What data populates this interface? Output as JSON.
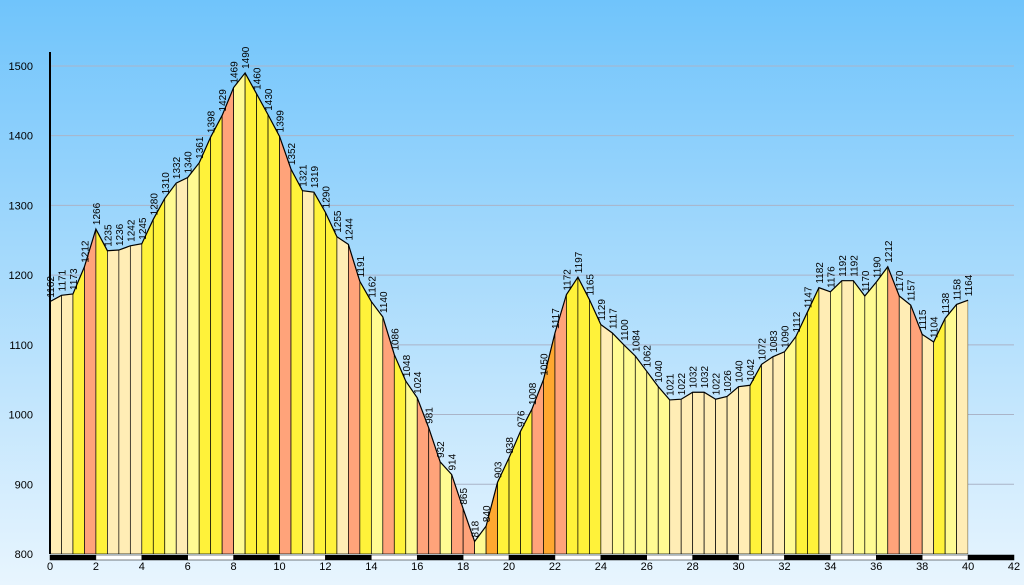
{
  "chart_data": {
    "type": "area",
    "title": "",
    "xlabel": "",
    "ylabel": "",
    "xlim": [
      0,
      42
    ],
    "ylim": [
      800,
      1520
    ],
    "grid": true,
    "x_ticks": [
      0,
      2,
      4,
      6,
      8,
      10,
      12,
      14,
      16,
      18,
      20,
      22,
      24,
      26,
      28,
      30,
      32,
      34,
      36,
      38,
      40,
      42
    ],
    "y_ticks": [
      800,
      900,
      1000,
      1100,
      1200,
      1300,
      1400,
      1500
    ],
    "points": [
      {
        "x": 0.0,
        "y": 1162
      },
      {
        "x": 0.5,
        "y": 1171
      },
      {
        "x": 1.0,
        "y": 1173
      },
      {
        "x": 1.5,
        "y": 1212
      },
      {
        "x": 2.0,
        "y": 1266
      },
      {
        "x": 2.5,
        "y": 1235
      },
      {
        "x": 3.0,
        "y": 1236
      },
      {
        "x": 3.5,
        "y": 1242
      },
      {
        "x": 4.0,
        "y": 1245
      },
      {
        "x": 4.5,
        "y": 1280
      },
      {
        "x": 5.0,
        "y": 1310
      },
      {
        "x": 5.5,
        "y": 1332
      },
      {
        "x": 6.0,
        "y": 1340
      },
      {
        "x": 6.5,
        "y": 1361
      },
      {
        "x": 7.0,
        "y": 1398
      },
      {
        "x": 7.5,
        "y": 1429
      },
      {
        "x": 8.0,
        "y": 1469
      },
      {
        "x": 8.5,
        "y": 1490
      },
      {
        "x": 9.0,
        "y": 1460
      },
      {
        "x": 9.5,
        "y": 1430
      },
      {
        "x": 10.0,
        "y": 1399
      },
      {
        "x": 10.5,
        "y": 1352
      },
      {
        "x": 11.0,
        "y": 1321
      },
      {
        "x": 11.5,
        "y": 1319
      },
      {
        "x": 12.0,
        "y": 1290
      },
      {
        "x": 12.5,
        "y": 1255
      },
      {
        "x": 13.0,
        "y": 1244
      },
      {
        "x": 13.5,
        "y": 1191
      },
      {
        "x": 14.0,
        "y": 1162
      },
      {
        "x": 14.5,
        "y": 1140
      },
      {
        "x": 15.0,
        "y": 1086
      },
      {
        "x": 15.5,
        "y": 1048
      },
      {
        "x": 16.0,
        "y": 1024
      },
      {
        "x": 16.5,
        "y": 981
      },
      {
        "x": 17.0,
        "y": 932
      },
      {
        "x": 17.5,
        "y": 914
      },
      {
        "x": 18.0,
        "y": 865
      },
      {
        "x": 18.5,
        "y": 818
      },
      {
        "x": 19.0,
        "y": 840
      },
      {
        "x": 19.5,
        "y": 903
      },
      {
        "x": 20.0,
        "y": 938
      },
      {
        "x": 20.5,
        "y": 976
      },
      {
        "x": 21.0,
        "y": 1008
      },
      {
        "x": 21.5,
        "y": 1050
      },
      {
        "x": 22.0,
        "y": 1117
      },
      {
        "x": 22.5,
        "y": 1172
      },
      {
        "x": 23.0,
        "y": 1197
      },
      {
        "x": 23.5,
        "y": 1165
      },
      {
        "x": 24.0,
        "y": 1129
      },
      {
        "x": 24.5,
        "y": 1117
      },
      {
        "x": 25.0,
        "y": 1100
      },
      {
        "x": 25.5,
        "y": 1084
      },
      {
        "x": 26.0,
        "y": 1062
      },
      {
        "x": 26.5,
        "y": 1040
      },
      {
        "x": 27.0,
        "y": 1021
      },
      {
        "x": 27.5,
        "y": 1022
      },
      {
        "x": 28.0,
        "y": 1032
      },
      {
        "x": 28.5,
        "y": 1032
      },
      {
        "x": 29.0,
        "y": 1022
      },
      {
        "x": 29.5,
        "y": 1026
      },
      {
        "x": 30.0,
        "y": 1040
      },
      {
        "x": 30.5,
        "y": 1042
      },
      {
        "x": 31.0,
        "y": 1072
      },
      {
        "x": 31.5,
        "y": 1083
      },
      {
        "x": 32.0,
        "y": 1090
      },
      {
        "x": 32.5,
        "y": 1112
      },
      {
        "x": 33.0,
        "y": 1147
      },
      {
        "x": 33.5,
        "y": 1182
      },
      {
        "x": 34.0,
        "y": 1176
      },
      {
        "x": 34.5,
        "y": 1192
      },
      {
        "x": 35.0,
        "y": 1192
      },
      {
        "x": 35.5,
        "y": 1170
      },
      {
        "x": 36.0,
        "y": 1190
      },
      {
        "x": 36.5,
        "y": 1212
      },
      {
        "x": 37.0,
        "y": 1170
      },
      {
        "x": 37.5,
        "y": 1157
      },
      {
        "x": 38.0,
        "y": 1115
      },
      {
        "x": 38.5,
        "y": 1104
      },
      {
        "x": 39.0,
        "y": 1138
      },
      {
        "x": 39.5,
        "y": 1158
      },
      {
        "x": 40.0,
        "y": 1164
      }
    ],
    "segment_colors": [
      "#ffedb5",
      "#fffb93",
      "#fff23a",
      "#ffa37a",
      "#ffa830"
    ],
    "line_color": "#000000",
    "grid_color": "#aab4c8",
    "background_top": "#70c4fb",
    "background_bottom": "#e8f5fe"
  }
}
